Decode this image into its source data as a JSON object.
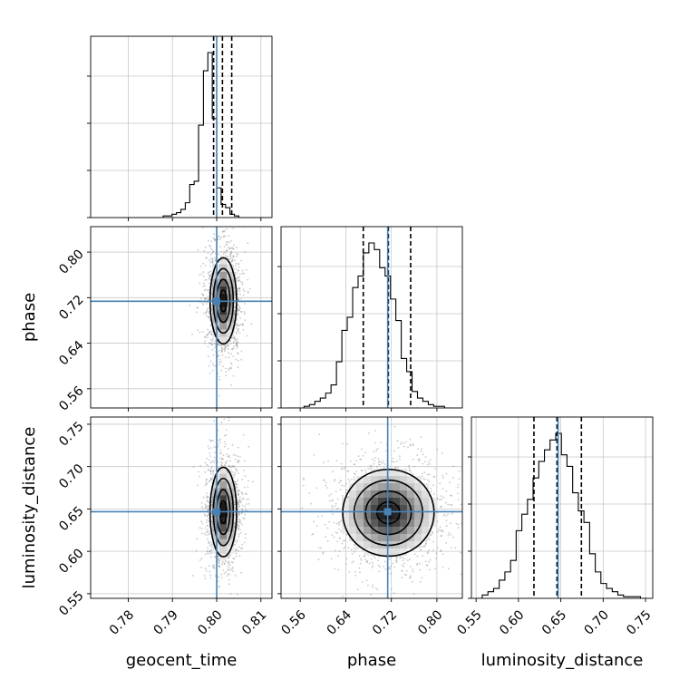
{
  "chart_data": {
    "type": "corner",
    "parameters": [
      "geocent_time",
      "phase",
      "luminosity_distance"
    ],
    "truths": {
      "geocent_time": 0.8,
      "phase": 0.7136,
      "luminosity_distance": 0.6468
    },
    "colors": {
      "truth": "#4682b4",
      "hist": "#000000",
      "scatter": "#888888",
      "grid": "#c8c8c8"
    },
    "axes": {
      "geocent_time": {
        "range": [
          0.7715,
          0.8125
        ],
        "ticks": [
          0.78,
          0.79,
          0.8,
          0.81
        ],
        "tick_labels": [
          "0.78",
          "0.79",
          "0.80",
          "0.81"
        ]
      },
      "phase": {
        "range": [
          0.5263,
          0.8447
        ],
        "ticks": [
          0.56,
          0.64,
          0.72,
          0.8
        ],
        "tick_labels": [
          "0.56",
          "0.64",
          "0.72",
          "0.80"
        ]
      },
      "luminosity_distance": {
        "range": [
          0.5445,
          0.7585
        ],
        "ticks": [
          0.55,
          0.6,
          0.65,
          0.7,
          0.75
        ],
        "tick_labels": [
          "0.55",
          "0.60",
          "0.65",
          "0.70",
          "0.75"
        ]
      }
    },
    "histograms": {
      "geocent_time": {
        "quantile_lines": [
          0.7993,
          0.8013,
          0.8034
        ],
        "bin_edges": [
          0.7787,
          0.7798,
          0.7808,
          0.7818,
          0.7828,
          0.7838,
          0.7848,
          0.7858,
          0.7868,
          0.7879,
          0.7889,
          0.7899,
          0.7909,
          0.7919,
          0.7929,
          0.7939,
          0.7949,
          0.7959,
          0.797,
          0.798,
          0.799,
          0.8,
          0.801,
          0.802,
          0.803,
          0.804,
          0.805,
          0.8061,
          0.8071,
          0.8081,
          0.8091,
          0.8101,
          0.8111,
          0.8121
        ],
        "counts": [
          0,
          0,
          0,
          0,
          0,
          0,
          0,
          0,
          0,
          0.01,
          0.01,
          0.02,
          0.03,
          0.05,
          0.09,
          0.2,
          0.22,
          0.56,
          0.89,
          1.0,
          0.6,
          0.18,
          0.08,
          0.06,
          0.02,
          0.01,
          0,
          0,
          0,
          0,
          0,
          0,
          0
        ]
      },
      "phase": {
        "quantile_lines": [
          0.6707,
          0.7148,
          0.7539
        ],
        "bin_edges": [
          0.5383,
          0.5478,
          0.5572,
          0.5667,
          0.5762,
          0.5857,
          0.5952,
          0.6047,
          0.6141,
          0.6236,
          0.6331,
          0.6426,
          0.6521,
          0.6616,
          0.671,
          0.6805,
          0.69,
          0.6995,
          0.709,
          0.7185,
          0.7279,
          0.7374,
          0.7469,
          0.7564,
          0.7659,
          0.7754,
          0.7849,
          0.7943,
          0.8038,
          0.8133,
          0.8228
        ],
        "counts": [
          0,
          0,
          0,
          0.01,
          0.02,
          0.04,
          0.06,
          0.09,
          0.14,
          0.28,
          0.47,
          0.55,
          0.73,
          0.8,
          0.94,
          1.0,
          0.96,
          0.85,
          0.8,
          0.66,
          0.53,
          0.3,
          0.22,
          0.1,
          0.06,
          0.04,
          0.02,
          0.01,
          0.01,
          0
        ]
      },
      "luminosity_distance": {
        "quantile_lines": [
          0.6183,
          0.6455,
          0.6743
        ],
        "bin_edges": [
          0.5507,
          0.5573,
          0.564,
          0.5707,
          0.5773,
          0.584,
          0.5907,
          0.5973,
          0.604,
          0.6107,
          0.6173,
          0.624,
          0.6307,
          0.6373,
          0.644,
          0.6507,
          0.6573,
          0.664,
          0.6707,
          0.6773,
          0.684,
          0.6907,
          0.6973,
          0.704,
          0.7107,
          0.7173,
          0.724,
          0.7307,
          0.7373,
          0.744,
          0.7507
        ],
        "counts": [
          0,
          0.02,
          0.04,
          0.06,
          0.11,
          0.16,
          0.23,
          0.41,
          0.51,
          0.6,
          0.73,
          0.83,
          0.9,
          0.96,
          1.0,
          0.87,
          0.8,
          0.64,
          0.53,
          0.46,
          0.27,
          0.16,
          0.09,
          0.06,
          0.04,
          0.02,
          0.01,
          0.01,
          0.01,
          0
        ]
      }
    },
    "density_2d": [
      {
        "x": "geocent_time",
        "y": "phase",
        "center": [
          0.8015,
          0.7144
        ],
        "sigma": [
          0.0015,
          0.0377
        ],
        "contour_levels_sigma": [
          0.5,
          1.0,
          1.5,
          2.0
        ]
      },
      {
        "x": "geocent_time",
        "y": "luminosity_distance",
        "center": [
          0.8015,
          0.6464
        ],
        "sigma": [
          0.0015,
          0.0264
        ],
        "contour_levels_sigma": [
          0.5,
          1.0,
          1.5,
          2.0
        ]
      },
      {
        "x": "phase",
        "y": "luminosity_distance",
        "center": [
          0.7148,
          0.6455
        ],
        "sigma": [
          0.0401,
          0.0256
        ],
        "contour_levels_sigma": [
          0.5,
          1.0,
          1.5,
          2.0
        ]
      }
    ],
    "xlabels": [
      "geocent_time",
      "phase",
      "luminosity_distance"
    ],
    "ylabels": [
      "phase",
      "luminosity_distance"
    ]
  }
}
